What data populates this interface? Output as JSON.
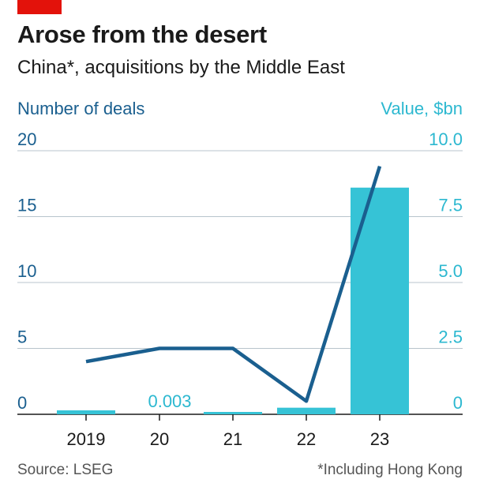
{
  "header": {
    "title": "Arose from the desert",
    "subtitle": "China*, acquisitions by the Middle East"
  },
  "footer": {
    "source": "Source: LSEG",
    "footnote": "*Including Hong Kong"
  },
  "colors": {
    "accent_red": "#e3120b",
    "line": "#1a5f8f",
    "bars": "#36c3d6",
    "right_axis": "#2cb8d0",
    "grid": "#b8c4cc"
  },
  "chart_data": {
    "type": "bar+line",
    "categories": [
      "2019",
      "20",
      "21",
      "22",
      "23"
    ],
    "left_axis": {
      "label": "Number of deals",
      "range": [
        0,
        20
      ],
      "ticks": [
        "0",
        "5",
        "10",
        "15",
        "20"
      ],
      "tick_values": [
        0,
        5,
        10,
        15,
        20
      ]
    },
    "right_axis": {
      "label": "Value, $bn",
      "range": [
        0,
        10
      ],
      "ticks": [
        "0",
        "2.5",
        "5.0",
        "7.5",
        "10.0"
      ],
      "tick_values": [
        0,
        2.5,
        5,
        7.5,
        10
      ]
    },
    "series": [
      {
        "name": "Value, $bn",
        "kind": "bar",
        "axis": "right",
        "values": [
          0.15,
          0.003,
          0.05,
          0.25,
          8.6
        ]
      },
      {
        "name": "Number of deals",
        "kind": "line",
        "axis": "left",
        "values": [
          4,
          5,
          5,
          1,
          19
        ]
      }
    ],
    "annotations": [
      {
        "category": "20",
        "text": "0.003"
      }
    ]
  }
}
